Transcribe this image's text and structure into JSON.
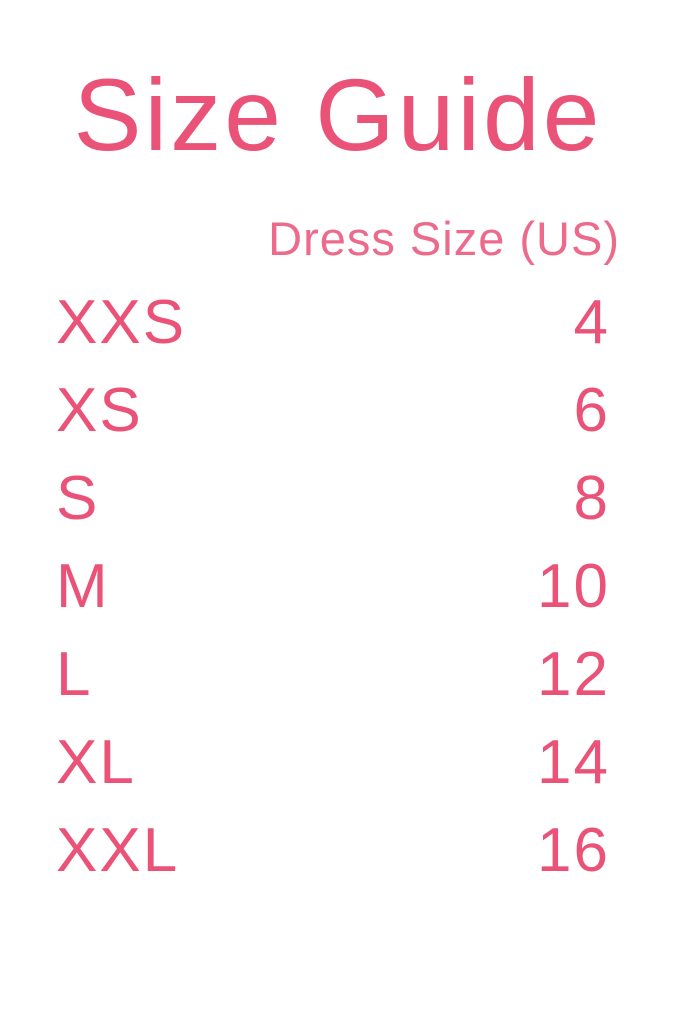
{
  "page": {
    "background_color": "#ffffff",
    "accent_color": "#ea5277",
    "accent_light_color": "#ec6b8c"
  },
  "title": "Size Guide",
  "table": {
    "column_header": "Dress Size (US)",
    "rows": [
      {
        "size": "XXS",
        "dress_size": "4"
      },
      {
        "size": "XS",
        "dress_size": "6"
      },
      {
        "size": "S",
        "dress_size": "8"
      },
      {
        "size": "M",
        "dress_size": "10"
      },
      {
        "size": "L",
        "dress_size": "12"
      },
      {
        "size": "XL",
        "dress_size": "14"
      },
      {
        "size": "XXL",
        "dress_size": "16"
      }
    ]
  }
}
